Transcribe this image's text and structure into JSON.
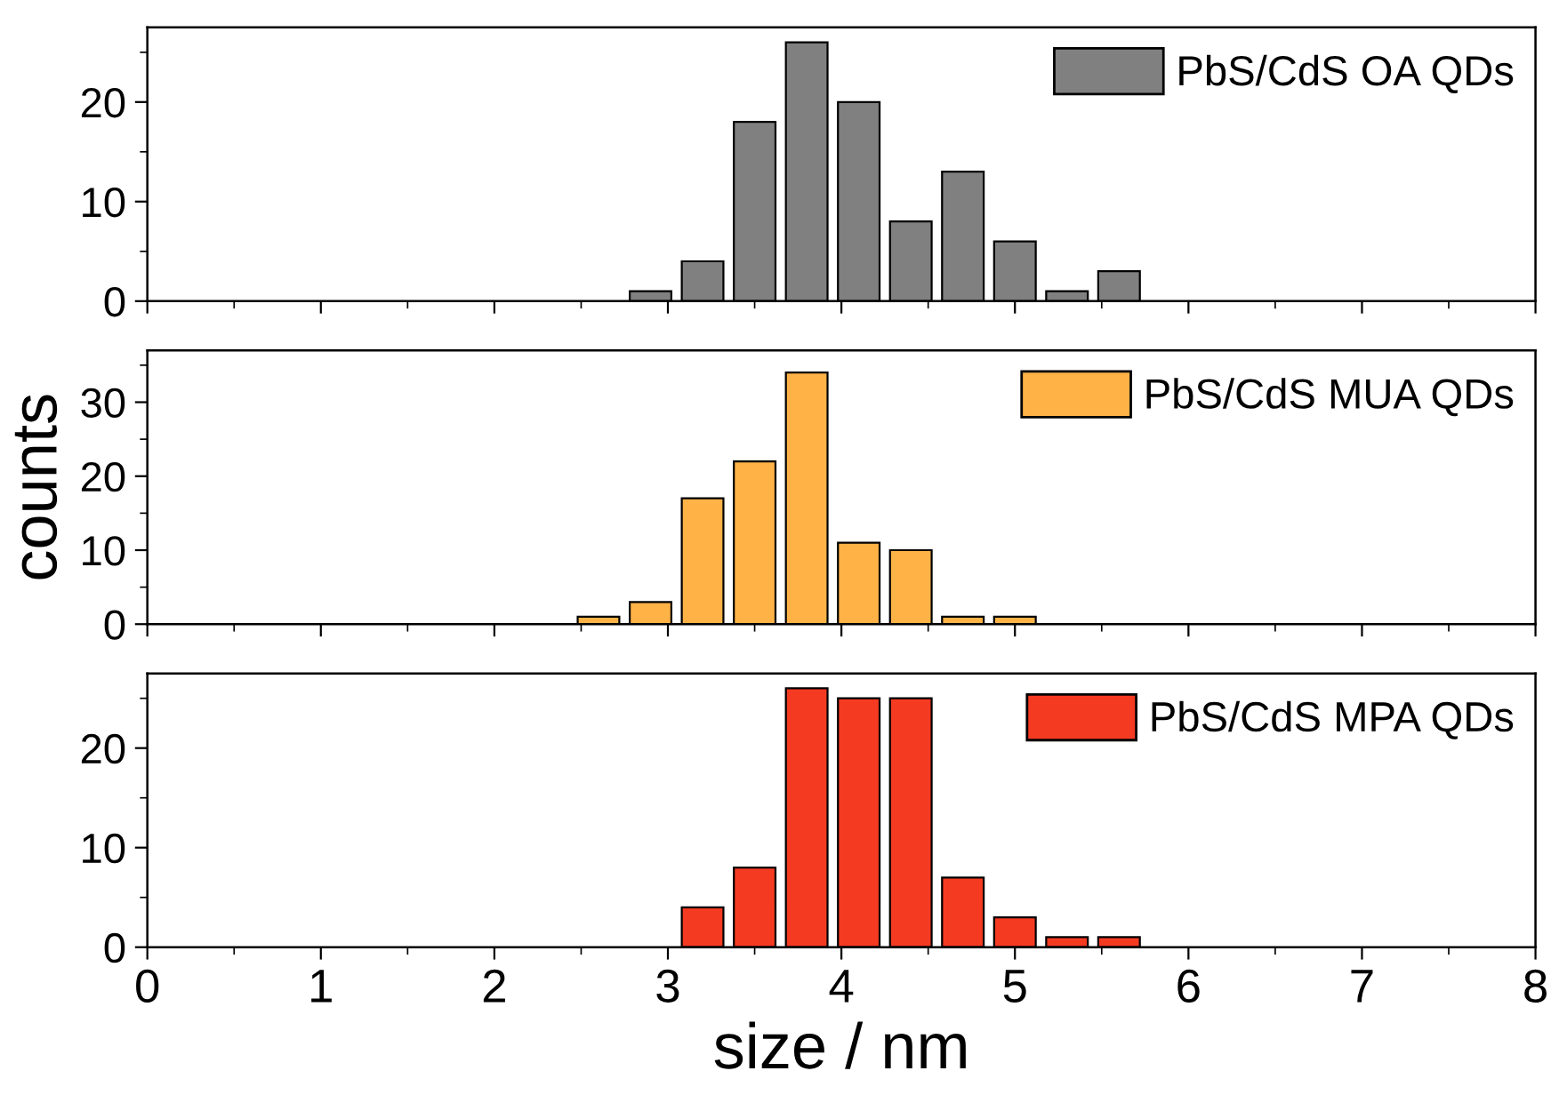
{
  "chart_data": [
    {
      "type": "histogram",
      "bins": [
        2.75,
        3.05,
        3.35,
        3.65,
        3.95,
        4.25,
        4.55,
        4.85,
        5.15,
        5.45,
        5.75
      ],
      "series": [
        {
          "name": "PbS/CdS OA QDs",
          "color": "#808080",
          "values": [
            1,
            4,
            18,
            26,
            20,
            8,
            13,
            6,
            1,
            3
          ]
        }
      ],
      "xlim": [
        0,
        8
      ],
      "xticks": [
        0,
        1,
        2,
        3,
        4,
        5,
        6,
        7,
        8
      ],
      "ylim": [
        0,
        27.5
      ],
      "yticks": [
        0,
        10,
        20
      ],
      "tick_labels": "y",
      "legend": "top right"
    },
    {
      "type": "histogram",
      "bins": [
        2.45,
        2.75,
        3.05,
        3.35,
        3.65,
        3.95,
        4.25,
        4.55,
        4.85,
        5.15
      ],
      "series": [
        {
          "name": "PbS/CdS MUA QDs",
          "color": "#ffb347",
          "values": [
            1,
            3,
            17,
            22,
            34,
            11,
            10,
            1,
            1
          ]
        }
      ],
      "xlim": [
        0,
        8
      ],
      "xticks": [
        0,
        1,
        2,
        3,
        4,
        5,
        6,
        7,
        8
      ],
      "ylim": [
        0,
        37
      ],
      "yticks": [
        0,
        10,
        20,
        30
      ],
      "ylabel": "counts",
      "tick_labels": "y",
      "legend": "top right"
    },
    {
      "type": "histogram",
      "bins": [
        3.05,
        3.35,
        3.65,
        3.95,
        4.25,
        4.55,
        4.85,
        5.15,
        5.45,
        5.75
      ],
      "series": [
        {
          "name": "PbS/CdS MPA QDs",
          "color": "#f53a22",
          "values": [
            4,
            8,
            26,
            25,
            25,
            7,
            3,
            1,
            1
          ]
        }
      ],
      "xlim": [
        0,
        8
      ],
      "xticks": [
        0,
        1,
        2,
        3,
        4,
        5,
        6,
        7,
        8
      ],
      "ylim": [
        0,
        27.5
      ],
      "yticks": [
        0,
        10,
        20
      ],
      "xlabel": "size / nm",
      "legend": "top right"
    }
  ]
}
